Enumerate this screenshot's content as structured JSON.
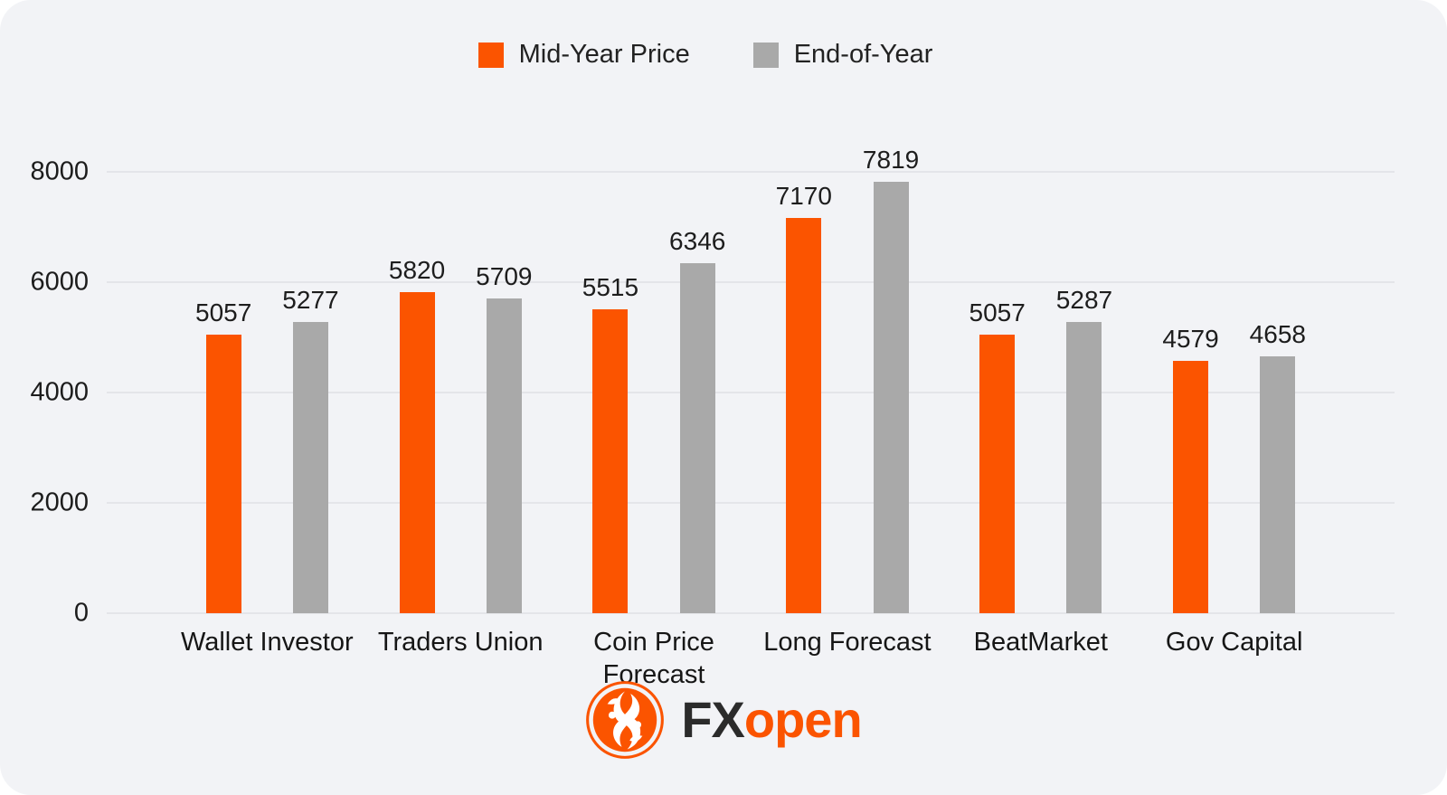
{
  "colors": {
    "card_bg": "#f2f3f6",
    "page_bg": "#ffffff",
    "accent_orange": "#fb5400",
    "bar_gray": "#a9a9a9",
    "gridline": "#e4e5e9",
    "text_dark": "#1c1c1c",
    "brand_fx_color": "#2b2b2b"
  },
  "chart_data": {
    "type": "bar",
    "categories": [
      "Wallet Investor",
      "Traders Union",
      "Coin Price Forecast",
      "Long Forecast",
      "BeatMarket",
      "Gov Capital"
    ],
    "series": [
      {
        "name": "Mid-Year Price",
        "color": "#fb5400",
        "values": [
          5057,
          5820,
          5515,
          7170,
          5057,
          4579
        ]
      },
      {
        "name": "End-of-Year",
        "color": "#a9a9a9",
        "values": [
          5277,
          5709,
          6346,
          7819,
          5287,
          4658
        ]
      }
    ],
    "title": "",
    "xlabel": "",
    "ylabel": "",
    "ylim": [
      0,
      8000
    ],
    "yticks": [
      0,
      2000,
      4000,
      6000,
      8000
    ],
    "grid": true,
    "legend_position": "top-center",
    "data_labels_shown": true
  },
  "footer": {
    "brand_fx": "FX",
    "brand_open": "open",
    "logo_icon": "fxopen-bull-bear-emblem"
  }
}
